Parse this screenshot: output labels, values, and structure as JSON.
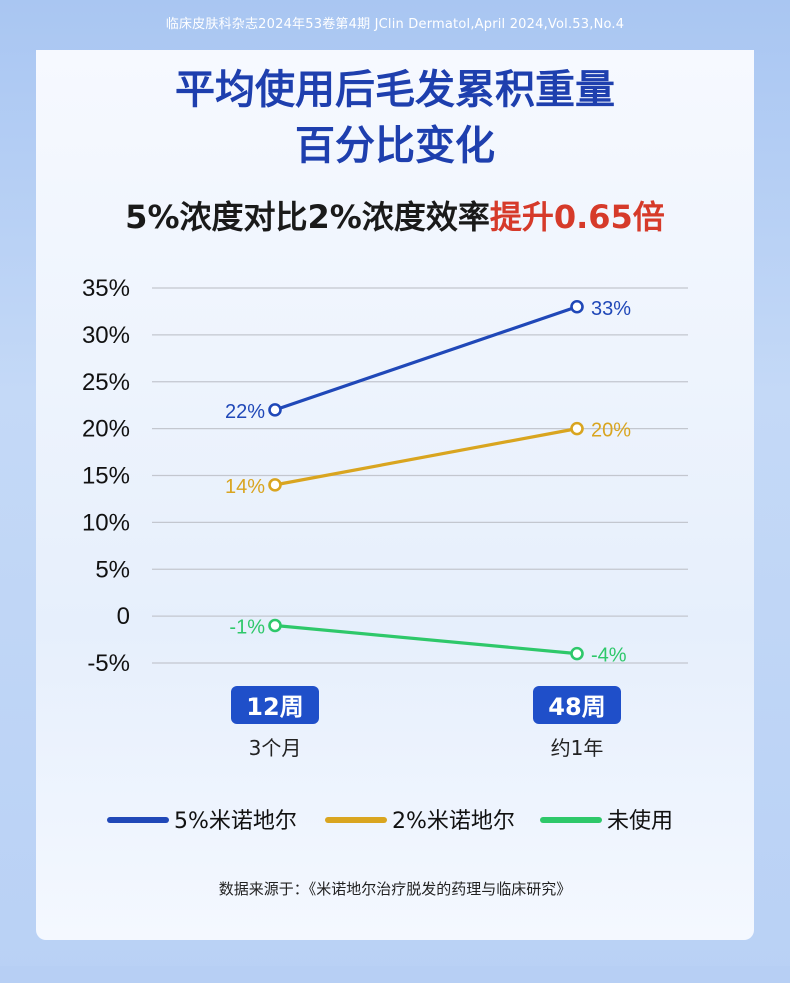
{
  "header": {
    "citation": "临床皮肤科杂志2024年53卷第4期 JClin Dermatol,April 2024,Vol.53,No.4"
  },
  "title_line1": "平均使用后毛发累积重量",
  "title_line2": "百分比变化",
  "subtitle_main": "5%浓度对比2%浓度效率",
  "subtitle_highlight": "提升0.65倍",
  "source_note": "数据来源于：《米诺地尔治疗脱发的药理与临床研究》",
  "chart_data": {
    "type": "line",
    "categories": [
      "12周",
      "48周"
    ],
    "category_sublabels": [
      "3个月",
      "约1年"
    ],
    "yticks": [
      "35%",
      "30%",
      "25%",
      "20%",
      "15%",
      "10%",
      "5%",
      "0",
      "-5%"
    ],
    "ytick_values": [
      35,
      30,
      25,
      20,
      15,
      10,
      5,
      0,
      -5
    ],
    "ylim": [
      -5,
      35
    ],
    "grid": true,
    "legend_position": "bottom",
    "series": [
      {
        "name": "5%米诺地尔",
        "values": [
          22,
          33
        ],
        "labels": [
          "22%",
          "33%"
        ],
        "color": "#2048b8"
      },
      {
        "name": "2%米诺地尔",
        "values": [
          14,
          20
        ],
        "labels": [
          "14%",
          "20%"
        ],
        "color": "#d9a520"
      },
      {
        "name": "未使用",
        "values": [
          -1,
          -4
        ],
        "labels": [
          "-1%",
          "-4%"
        ],
        "color": "#2ec86a"
      }
    ],
    "badge_color": "#1f4fc9"
  }
}
